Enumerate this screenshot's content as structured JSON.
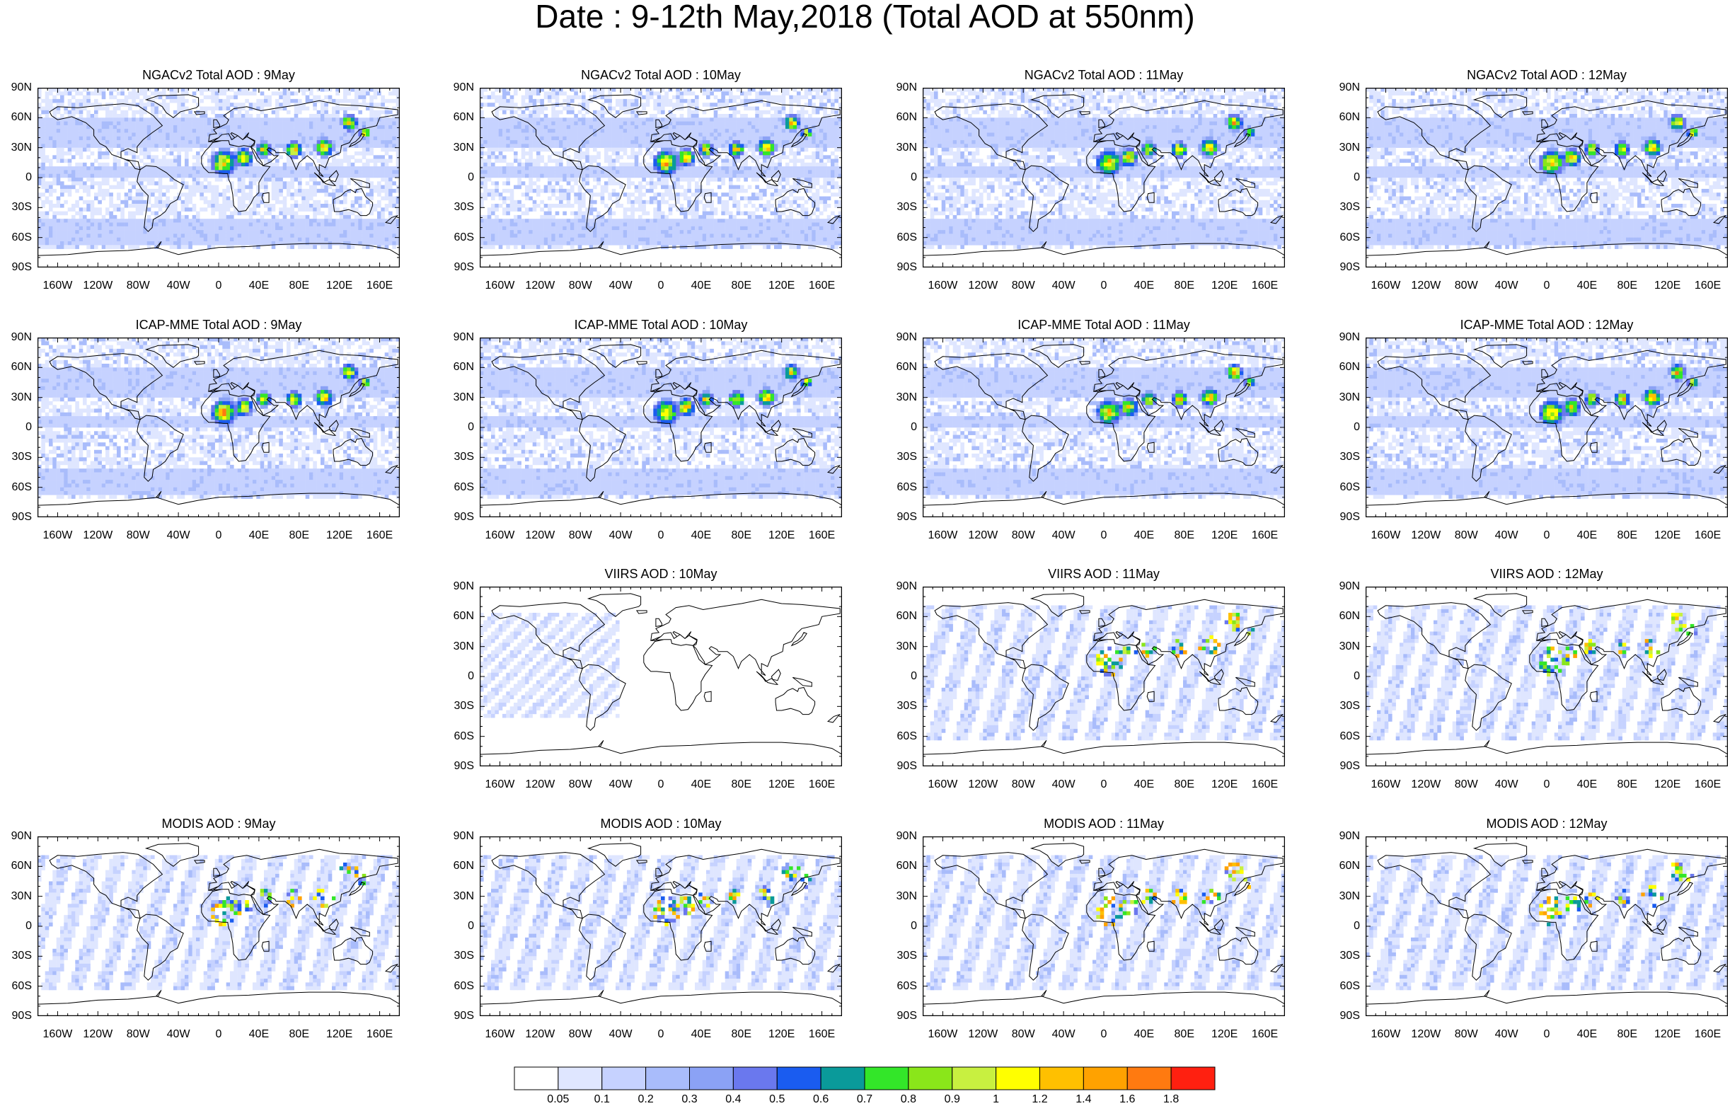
{
  "title": "Date : 9-12th May,2018 (Total AOD at 550nm)",
  "lat_labels": [
    "90N",
    "60N",
    "30N",
    "0",
    "30S",
    "60S",
    "90S"
  ],
  "lon_labels": [
    "160W",
    "120W",
    "80W",
    "40W",
    "0",
    "40E",
    "80E",
    "120E",
    "160E"
  ],
  "rows": [
    {
      "product": "NGACv2",
      "panels": [
        {
          "title": "NGACv2 Total AOD : 9May",
          "style": "model"
        },
        {
          "title": "NGACv2 Total AOD : 10May",
          "style": "model"
        },
        {
          "title": "NGACv2 Total AOD : 11May",
          "style": "model"
        },
        {
          "title": "NGACv2 Total AOD : 12May",
          "style": "model"
        }
      ]
    },
    {
      "product": "ICAP-MME",
      "panels": [
        {
          "title": "ICAP-MME Total AOD : 9May",
          "style": "model"
        },
        {
          "title": "ICAP-MME Total AOD : 10May",
          "style": "model"
        },
        {
          "title": "ICAP-MME Total AOD : 11May",
          "style": "model"
        },
        {
          "title": "ICAP-MME Total AOD : 12May",
          "style": "model"
        }
      ]
    },
    {
      "product": "VIIRS",
      "panels": [
        null,
        {
          "title": "VIIRS AOD : 10May",
          "style": "sparse"
        },
        {
          "title": "VIIRS AOD : 11May",
          "style": "swath"
        },
        {
          "title": "VIIRS AOD : 12May",
          "style": "swath"
        }
      ]
    },
    {
      "product": "MODIS",
      "panels": [
        {
          "title": "MODIS AOD : 9May",
          "style": "swath"
        },
        {
          "title": "MODIS AOD : 10May",
          "style": "swath"
        },
        {
          "title": "MODIS AOD : 11May",
          "style": "swath"
        },
        {
          "title": "MODIS AOD : 12May",
          "style": "swath"
        }
      ]
    }
  ],
  "colorbar": {
    "labels": [
      "0.05",
      "0.1",
      "0.2",
      "0.3",
      "0.4",
      "0.5",
      "0.6",
      "0.7",
      "0.8",
      "0.9",
      "1",
      "1.2",
      "1.4",
      "1.6",
      "1.8"
    ],
    "colors": [
      "#ffffff",
      "#dfe6ff",
      "#c6d2ff",
      "#a9bcfb",
      "#8ba2f5",
      "#6a78ee",
      "#1a5cf0",
      "#0a9a9a",
      "#33e629",
      "#8ae61a",
      "#c8f040",
      "#ffff00",
      "#ffc000",
      "#ffa200",
      "#ff7a10",
      "#ff2010"
    ]
  },
  "colors": {
    "ocean_light": "#dfe6ff",
    "model_base": "#c6d2ff",
    "coastline": "#000000"
  }
}
